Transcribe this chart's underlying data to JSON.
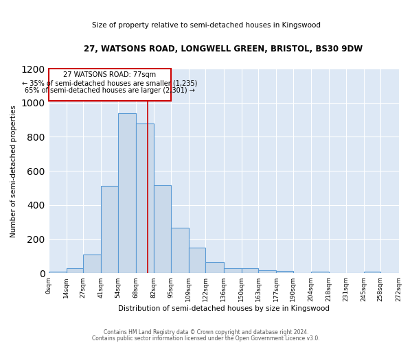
{
  "title1": "27, WATSONS ROAD, LONGWELL GREEN, BRISTOL, BS30 9DW",
  "title2": "Size of property relative to semi-detached houses in Kingswood",
  "xlabel": "Distribution of semi-detached houses by size in Kingswood",
  "ylabel": "Number of semi-detached properties",
  "property_size": 77,
  "annotation_line1": "27 WATSONS ROAD: 77sqm",
  "annotation_line2": "← 35% of semi-detached houses are smaller (1,235)",
  "annotation_line3": "65% of semi-detached houses are larger (2,301) →",
  "bin_edges": [
    0,
    14,
    27,
    41,
    54,
    68,
    82,
    95,
    109,
    122,
    136,
    150,
    163,
    177,
    190,
    204,
    218,
    231,
    245,
    258,
    272
  ],
  "bar_heights": [
    10,
    28,
    110,
    510,
    940,
    880,
    515,
    265,
    150,
    65,
    28,
    28,
    15,
    12,
    0,
    10,
    0,
    0,
    8,
    0
  ],
  "bar_facecolor": "#c9d9ea",
  "bar_edgecolor": "#5b9bd5",
  "vline_x": 77,
  "vline_color": "#cc0000",
  "box_edgecolor": "#cc0000",
  "background_color": "#dde8f5",
  "ylim": [
    0,
    1200
  ],
  "yticks": [
    0,
    200,
    400,
    600,
    800,
    1000,
    1200
  ],
  "footer1": "Contains HM Land Registry data © Crown copyright and database right 2024.",
  "footer2": "Contains public sector information licensed under the Open Government Licence v3.0."
}
